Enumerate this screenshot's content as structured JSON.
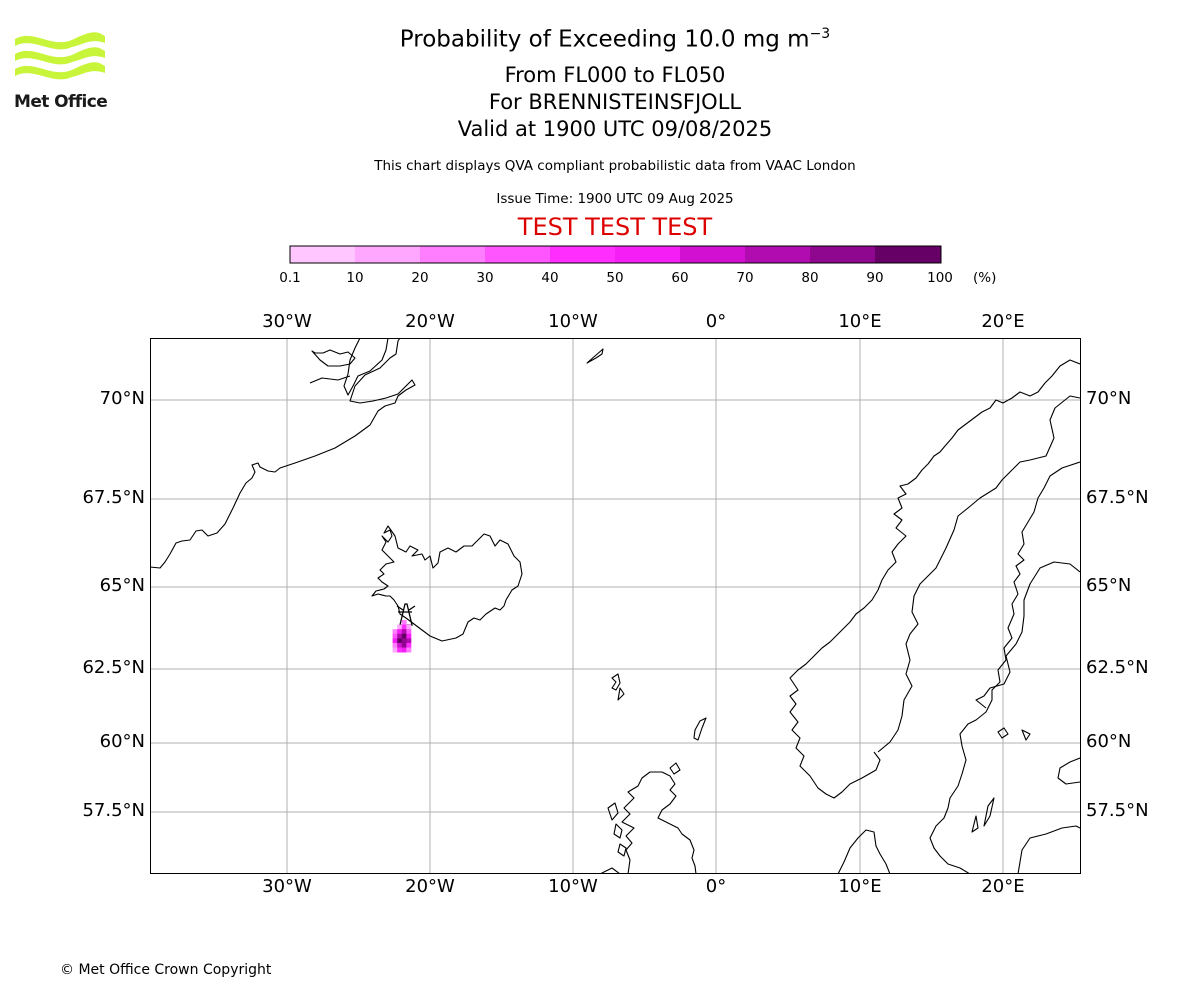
{
  "header": {
    "title_prefix": "Probability of Exceeding 10.0 mg m",
    "title_exponent": "−3",
    "level_range": "From FL000 to FL050",
    "volcano": "For BRENNISTEINSFJOLL",
    "valid_time": "Valid at 1900 UTC 09/08/2025",
    "description": "This chart displays QVA compliant probabilistic data from VAAC London",
    "issue_time": "Issue Time: 1900 UTC 09 Aug 2025",
    "test_banner": "TEST TEST TEST"
  },
  "logo": {
    "text": "Met Office",
    "icon": "met-office-wave-logo",
    "color": "#c8f53a"
  },
  "colorbar": {
    "tick_labels": [
      "0.1",
      "10",
      "20",
      "30",
      "40",
      "50",
      "60",
      "70",
      "80",
      "90",
      "100"
    ],
    "unit": "(%)",
    "colors": [
      "#ffe6ff",
      "#ffc6ff",
      "#ffa6ff",
      "#ff7dff",
      "#ff55ff",
      "#ff2eff",
      "#f51ff5",
      "#d210d2",
      "#b00cb0",
      "#8e078e",
      "#660066"
    ]
  },
  "map": {
    "lon_labels": [
      "30°W",
      "20°W",
      "10°W",
      "0°",
      "10°E",
      "20°E"
    ],
    "lat_labels": [
      "70°N",
      "67.5°N",
      "65°N",
      "62.5°N",
      "60°N",
      "57.5°N"
    ],
    "grid_color": "#b0b0b0",
    "coastline_color": "#000000"
  },
  "footer": {
    "copyright": "© Met Office Crown Copyright"
  }
}
